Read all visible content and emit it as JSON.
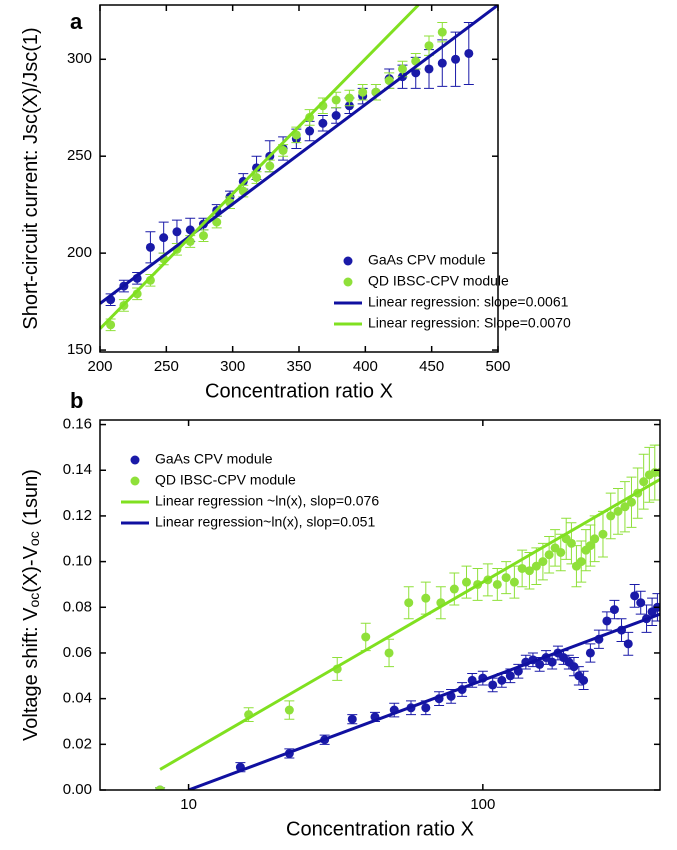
{
  "chart_data": [
    {
      "type": "scatter",
      "panel": "a",
      "xlabel": "Concentration ratio  X",
      "ylabel": [
        "Short-circuit current: Jsc(X)/Jsc(1)"
      ],
      "xlim": [
        200,
        500
      ],
      "ylim": [
        149,
        328
      ],
      "xticks": [
        200,
        250,
        300,
        350,
        400,
        450,
        500
      ],
      "yticks": [
        150,
        200,
        250,
        300
      ],
      "legend": "lower right",
      "series": [
        {
          "name": "GaAs CPV module",
          "kind": "scatter",
          "color": "#1a1aa8",
          "x": [
            208,
            218,
            228,
            238,
            248,
            258,
            268,
            278,
            288,
            298,
            308,
            318,
            328,
            338,
            348,
            358,
            368,
            378,
            388,
            398,
            408,
            418,
            428,
            438,
            448,
            458,
            468,
            478
          ],
          "values": [
            176,
            183,
            187,
            203,
            208,
            211,
            212,
            215,
            222,
            229,
            237,
            244,
            250,
            254,
            259,
            263,
            267,
            271,
            276,
            281,
            283,
            290,
            291,
            293,
            295,
            298,
            300,
            303
          ],
          "errors": [
            3,
            3,
            3,
            8,
            8,
            6,
            6,
            3,
            3,
            3,
            4,
            6,
            8,
            6,
            5,
            5,
            4,
            4,
            4,
            4,
            4,
            5,
            6,
            8,
            10,
            12,
            14,
            16
          ]
        },
        {
          "name": "QD IBSC-CPV module",
          "kind": "scatter",
          "color": "#8fe03a",
          "x": [
            208,
            218,
            228,
            238,
            248,
            258,
            268,
            278,
            288,
            298,
            308,
            318,
            328,
            338,
            348,
            358,
            368,
            378,
            388,
            398,
            408,
            418,
            428,
            438,
            448,
            458
          ],
          "values": [
            163,
            173,
            179,
            186,
            197,
            202,
            206,
            209,
            216,
            226,
            232,
            239,
            245,
            253,
            261,
            270,
            276,
            279,
            280,
            283,
            283,
            289,
            295,
            299,
            307,
            314
          ],
          "errors": [
            3,
            3,
            3,
            3,
            3,
            3,
            3,
            3,
            3,
            3,
            3,
            3,
            3,
            3,
            4,
            4,
            4,
            4,
            4,
            4,
            4,
            4,
            4,
            4,
            5,
            5
          ]
        },
        {
          "name": "Linear regression: slope=0.0061",
          "kind": "line",
          "color": "#1010a0",
          "x": [
            200,
            500
          ],
          "values": [
            174,
            328
          ]
        },
        {
          "name": "Linear regression: Slope=0.0070",
          "kind": "line",
          "color": "#80e020",
          "x": [
            200,
            440
          ],
          "values": [
            161,
            328
          ]
        }
      ]
    },
    {
      "type": "scatter",
      "panel": "b",
      "xlabel": "Concentration ratio X",
      "ylabel": [
        "Voltage shift: V",
        "oc",
        "(X)-V",
        "oc",
        " (1sun)"
      ],
      "xlim": [
        5,
        400
      ],
      "ylim": [
        0,
        0.162
      ],
      "xlog": true,
      "xticks": [
        10,
        100
      ],
      "yticks": [
        {
          "value": 0,
          "label": "0.00"
        },
        {
          "value": 0.02,
          "label": "0.02"
        },
        {
          "value": 0.04,
          "label": "0.04"
        },
        {
          "value": 0.06,
          "label": "0.06"
        },
        {
          "value": 0.08,
          "label": "0.08"
        },
        {
          "value": 0.1,
          "label": "0.10"
        },
        {
          "value": 0.12,
          "label": "0.12"
        },
        {
          "value": 0.14,
          "label": "0.14"
        },
        {
          "value": 0.16,
          "label": "0.16"
        }
      ],
      "legend": "upper left",
      "series": [
        {
          "name": "GaAs CPV module",
          "kind": "scatter",
          "color": "#1a1aa8",
          "x": [
            8,
            15,
            22,
            29,
            36,
            43,
            50,
            57,
            64,
            71,
            78,
            85,
            92,
            100,
            108,
            116,
            124,
            132,
            140,
            148,
            156,
            164,
            172,
            180,
            188,
            196,
            204,
            212,
            220,
            232,
            248,
            264,
            280,
            296,
            312,
            328,
            344,
            360,
            376,
            392
          ],
          "values": [
            0,
            0.01,
            0.016,
            0.022,
            0.031,
            0.032,
            0.035,
            0.036,
            0.036,
            0.04,
            0.041,
            0.044,
            0.048,
            0.049,
            0.046,
            0.048,
            0.05,
            0.052,
            0.056,
            0.057,
            0.055,
            0.058,
            0.056,
            0.06,
            0.058,
            0.056,
            0.054,
            0.05,
            0.048,
            0.06,
            0.066,
            0.074,
            0.079,
            0.07,
            0.064,
            0.085,
            0.082,
            0.075,
            0.078,
            0.08
          ],
          "errors": [
            0.001,
            0.002,
            0.002,
            0.002,
            0.002,
            0.002,
            0.003,
            0.003,
            0.003,
            0.003,
            0.003,
            0.003,
            0.003,
            0.003,
            0.003,
            0.003,
            0.003,
            0.003,
            0.003,
            0.003,
            0.003,
            0.003,
            0.003,
            0.003,
            0.003,
            0.003,
            0.004,
            0.004,
            0.004,
            0.004,
            0.004,
            0.004,
            0.004,
            0.005,
            0.005,
            0.005,
            0.005,
            0.006,
            0.006,
            0.006
          ]
        },
        {
          "name": "QD IBSC-CPV module",
          "kind": "scatter",
          "color": "#8fe03a",
          "x": [
            8,
            16,
            22,
            32,
            40,
            48,
            56,
            64,
            72,
            80,
            88,
            96,
            104,
            112,
            120,
            128,
            136,
            144,
            152,
            160,
            168,
            176,
            184,
            192,
            200,
            208,
            216,
            224,
            232,
            240,
            256,
            272,
            288,
            304,
            320,
            336,
            352,
            368,
            384,
            400
          ],
          "values": [
            0,
            0.033,
            0.035,
            0.053,
            0.067,
            0.06,
            0.082,
            0.084,
            0.082,
            0.088,
            0.091,
            0.09,
            0.092,
            0.09,
            0.093,
            0.091,
            0.097,
            0.096,
            0.098,
            0.1,
            0.103,
            0.106,
            0.104,
            0.11,
            0.108,
            0.098,
            0.1,
            0.105,
            0.107,
            0.11,
            0.112,
            0.12,
            0.122,
            0.124,
            0.126,
            0.13,
            0.135,
            0.138,
            0.139,
            0.139
          ],
          "errors": [
            0.001,
            0.003,
            0.004,
            0.005,
            0.006,
            0.006,
            0.007,
            0.007,
            0.007,
            0.007,
            0.007,
            0.007,
            0.007,
            0.007,
            0.007,
            0.007,
            0.008,
            0.008,
            0.008,
            0.008,
            0.008,
            0.008,
            0.008,
            0.009,
            0.009,
            0.009,
            0.009,
            0.009,
            0.009,
            0.01,
            0.01,
            0.01,
            0.01,
            0.011,
            0.011,
            0.011,
            0.012,
            0.012,
            0.012,
            0.012
          ]
        },
        {
          "name": "Linear regression ~ln(x), slop=0.076",
          "kind": "line",
          "color": "#80e020",
          "x": [
            8,
            400
          ],
          "values": [
            0.009,
            0.136
          ]
        },
        {
          "name": "Linear regression~ln(x), slop=0.051",
          "kind": "line",
          "color": "#1010a0",
          "x": [
            10,
            400
          ],
          "values": [
            0,
            0.077
          ]
        }
      ]
    }
  ]
}
